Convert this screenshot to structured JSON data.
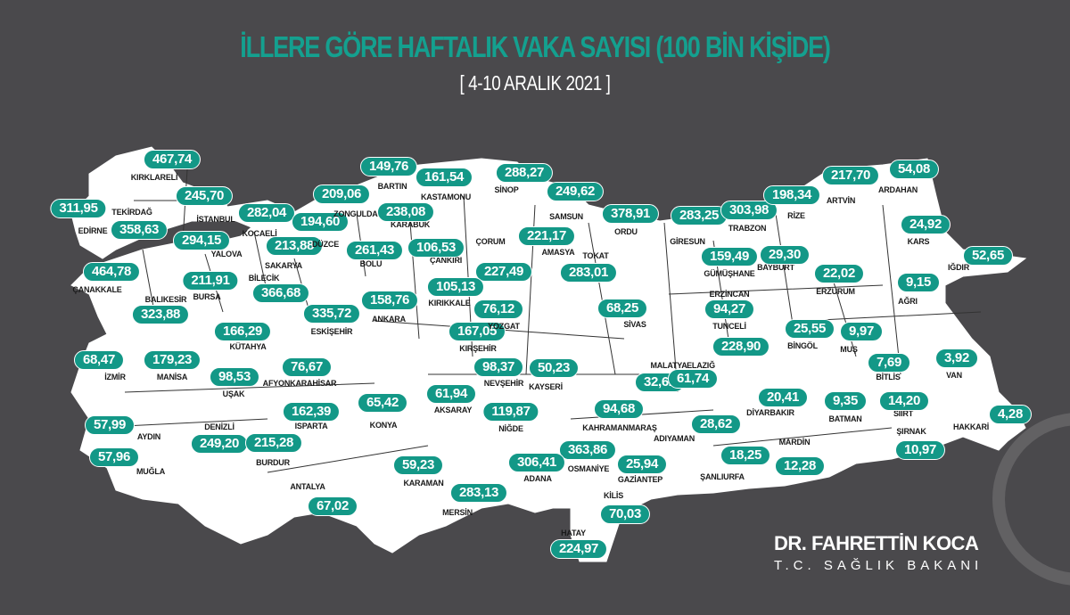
{
  "header": {
    "title": "İLLERE GÖRE HAFTALIK VAKA SAYISI (100 BİN KİŞİDE)",
    "subtitle": "[ 4-10 ARALIK 2021 ]"
  },
  "colors": {
    "background": "#4a494c",
    "accent": "#139887",
    "land": "#ffffff"
  },
  "provinces": [
    {
      "name": "KIRKLARELİ",
      "value": "467,74"
    },
    {
      "name": "EDİRNE",
      "value": "311,95"
    },
    {
      "name": "TEKİRDAĞ",
      "value": "358,63"
    },
    {
      "name": "İSTANBUL",
      "value": "245,70"
    },
    {
      "name": "KOCAELİ",
      "value": "282,04"
    },
    {
      "name": "YALOVA",
      "value": "294,15"
    },
    {
      "name": "SAKARYA",
      "value": "213,88"
    },
    {
      "name": "DÜZCE",
      "value": "194,60"
    },
    {
      "name": "ZONGULDAK",
      "value": "209,06"
    },
    {
      "name": "BARTIN",
      "value": "149,76"
    },
    {
      "name": "KARABÜK",
      "value": "238,08"
    },
    {
      "name": "KASTAMONU",
      "value": "161,54"
    },
    {
      "name": "SİNOP",
      "value": "288,27"
    },
    {
      "name": "SAMSUN",
      "value": "249,62"
    },
    {
      "name": "ORDU",
      "value": "378,91"
    },
    {
      "name": "GİRESUN",
      "value": "283,25"
    },
    {
      "name": "TRABZON",
      "value": "303,98"
    },
    {
      "name": "RİZE",
      "value": "198,34"
    },
    {
      "name": "ARTVİN",
      "value": "217,70"
    },
    {
      "name": "ARDAHAN",
      "value": "54,08"
    },
    {
      "name": "KARS",
      "value": "24,92"
    },
    {
      "name": "IĞDIR",
      "value": "52,65"
    },
    {
      "name": "AĞRI",
      "value": "9,15"
    },
    {
      "name": "ERZURUM",
      "value": "22,02"
    },
    {
      "name": "BAYBURT",
      "value": "29,30"
    },
    {
      "name": "GÜMÜŞHANE",
      "value": "159,49"
    },
    {
      "name": "ERZİNCAN",
      "value": "94,27"
    },
    {
      "name": "TUNCELİ",
      "value": "228,90"
    },
    {
      "name": "BİNGÖL",
      "value": "25,55"
    },
    {
      "name": "MUŞ",
      "value": "9,97"
    },
    {
      "name": "BİTLİS",
      "value": "7,69"
    },
    {
      "name": "VAN",
      "value": "3,92"
    },
    {
      "name": "SİİRT",
      "value": "14,20"
    },
    {
      "name": "BATMAN",
      "value": "9,35"
    },
    {
      "name": "ŞIRNAK",
      "value": "10,97"
    },
    {
      "name": "HAKKARİ",
      "value": "4,28"
    },
    {
      "name": "DİYARBAKIR",
      "value": "20,41"
    },
    {
      "name": "MARDİN",
      "value": "12,28"
    },
    {
      "name": "ŞANLIURFA",
      "value": "18,25"
    },
    {
      "name": "ADIYAMAN",
      "value": "28,62"
    },
    {
      "name": "MALATYA",
      "value": "32,62"
    },
    {
      "name": "ELAZIĞ",
      "value": "61,74"
    },
    {
      "name": "KAHRAMANMARAŞ",
      "value": "94,68"
    },
    {
      "name": "GAZİANTEP",
      "value": "25,94"
    },
    {
      "name": "KİLİS",
      "value": "70,03"
    },
    {
      "name": "OSMANİYE",
      "value": "363,86"
    },
    {
      "name": "HATAY",
      "value": "224,97"
    },
    {
      "name": "ADANA",
      "value": "306,41"
    },
    {
      "name": "MERSİN",
      "value": "283,13"
    },
    {
      "name": "KARAMAN",
      "value": "59,23"
    },
    {
      "name": "NİĞDE",
      "value": "119,87"
    },
    {
      "name": "AKSARAY",
      "value": "61,94"
    },
    {
      "name": "NEVŞEHİR",
      "value": "98,37"
    },
    {
      "name": "KAYSERİ",
      "value": "50,23"
    },
    {
      "name": "KIRŞEHİR",
      "value": "167,05"
    },
    {
      "name": "YOZGAT",
      "value": "76,12"
    },
    {
      "name": "SİVAS",
      "value": "68,25"
    },
    {
      "name": "TOKAT",
      "value": "283,01"
    },
    {
      "name": "AMASYA",
      "value": "221,17"
    },
    {
      "name": "ÇORUM",
      "value": "227,49"
    },
    {
      "name": "ÇANKIRI",
      "value": "106,53"
    },
    {
      "name": "KIRIKKALE",
      "value": "105,13"
    },
    {
      "name": "ANKARA",
      "value": "158,76"
    },
    {
      "name": "BOLU",
      "value": "261,43"
    },
    {
      "name": "BİLECİK",
      "value": "366,68"
    },
    {
      "name": "ESKİŞEHİR",
      "value": "335,72"
    },
    {
      "name": "BURSA",
      "value": "211,91"
    },
    {
      "name": "BALIKESİR",
      "value": "323,88"
    },
    {
      "name": "ÇANAKKALE",
      "value": "464,78"
    },
    {
      "name": "KÜTAHYA",
      "value": "166,29"
    },
    {
      "name": "İZMİR",
      "value": "68,47"
    },
    {
      "name": "MANİSA",
      "value": "179,23"
    },
    {
      "name": "UŞAK",
      "value": "98,53"
    },
    {
      "name": "AFYONKARAHİSAR",
      "value": "76,67"
    },
    {
      "name": "ISPARTA",
      "value": "162,39"
    },
    {
      "name": "KONYA",
      "value": "65,42"
    },
    {
      "name": "DENİZLİ",
      "value": "249,20"
    },
    {
      "name": "BURDUR",
      "value": "215,28"
    },
    {
      "name": "AYDIN",
      "value": "57,99"
    },
    {
      "name": "MUĞLA",
      "value": "57,96"
    },
    {
      "name": "ANTALYA",
      "value": "67,02"
    }
  ],
  "signature": {
    "name": "DR. FAHRETTİN KOCA",
    "title": "T.C. SAĞLIK BAKANI"
  }
}
